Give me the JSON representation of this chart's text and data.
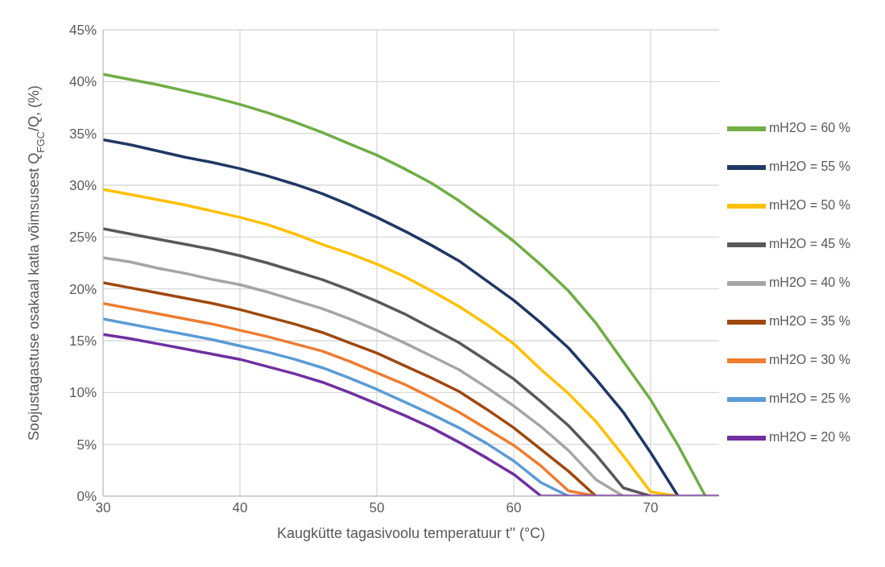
{
  "chart_data": {
    "type": "line",
    "xlabel": "Kaugkütte tagasivoolu temperatuur t'' (°C)",
    "ylabel": "Soojustagastuse osakaal katla võimsusest Q$_{FGC}$/Q, (%)",
    "x": [
      30,
      32,
      34,
      36,
      38,
      40,
      42,
      44,
      46,
      48,
      50,
      52,
      54,
      56,
      58,
      60,
      62,
      64,
      66,
      68,
      70,
      72,
      74,
      75
    ],
    "xlim": [
      30,
      75
    ],
    "xticks": [
      30,
      40,
      50,
      60,
      70
    ],
    "ylim": [
      0,
      45
    ],
    "yticks": [
      {
        "value": 0,
        "label": "0%"
      },
      {
        "value": 5,
        "label": "5%"
      },
      {
        "value": 10,
        "label": "10%"
      },
      {
        "value": 15,
        "label": "15%"
      },
      {
        "value": 20,
        "label": "20%"
      },
      {
        "value": 25,
        "label": "25%"
      },
      {
        "value": 30,
        "label": "30%"
      },
      {
        "value": 35,
        "label": "35%"
      },
      {
        "value": 40,
        "label": "40%"
      },
      {
        "value": 45,
        "label": "45%"
      }
    ],
    "grid": true,
    "legend": "right",
    "line_style": "solid",
    "series": [
      {
        "name": "mH2O = 60 %",
        "color": "#70ad47",
        "values": [
          40.7,
          40.2,
          39.7,
          39.1,
          38.5,
          37.8,
          37.0,
          36.1,
          35.1,
          34.0,
          32.9,
          31.6,
          30.2,
          28.5,
          26.6,
          24.6,
          22.3,
          19.8,
          16.7,
          13.0,
          9.3,
          4.9,
          0,
          null
        ]
      },
      {
        "name": "mH2O = 55 %",
        "color": "#203864",
        "values": [
          34.4,
          33.9,
          33.3,
          32.7,
          32.2,
          31.6,
          30.9,
          30.1,
          29.2,
          28.1,
          26.9,
          25.6,
          24.2,
          22.7,
          20.8,
          18.9,
          16.7,
          14.3,
          11.3,
          8.1,
          4.2,
          0,
          null,
          null
        ]
      },
      {
        "name": "mH2O = 50 %",
        "color": "#ffc000",
        "values": [
          29.6,
          29.1,
          28.6,
          28.1,
          27.5,
          26.9,
          26.2,
          25.3,
          24.3,
          23.4,
          22.4,
          21.2,
          19.8,
          18.3,
          16.6,
          14.7,
          12.2,
          9.9,
          7.2,
          3.9,
          0.4,
          0,
          null,
          null
        ]
      },
      {
        "name": "mH2O = 45 %",
        "color": "#595959",
        "values": [
          25.8,
          25.3,
          24.8,
          24.3,
          23.8,
          23.2,
          22.5,
          21.7,
          20.9,
          19.9,
          18.8,
          17.6,
          16.2,
          14.8,
          13.1,
          11.3,
          9.1,
          6.8,
          4.0,
          0.8,
          0,
          null,
          null,
          null
        ]
      },
      {
        "name": "mH2O = 40 %",
        "color": "#a5a5a5",
        "values": [
          23.0,
          22.6,
          22.0,
          21.5,
          20.9,
          20.4,
          19.7,
          18.9,
          18.1,
          17.1,
          16.0,
          14.8,
          13.5,
          12.2,
          10.5,
          8.7,
          6.7,
          4.4,
          1.6,
          0,
          null,
          null,
          null,
          null
        ]
      },
      {
        "name": "mH2O = 35 %",
        "color": "#9e480e",
        "values": [
          20.6,
          20.1,
          19.6,
          19.1,
          18.6,
          18.0,
          17.3,
          16.6,
          15.8,
          14.8,
          13.8,
          12.6,
          11.4,
          10.1,
          8.4,
          6.6,
          4.5,
          2.4,
          0,
          null,
          null,
          null,
          null,
          null
        ]
      },
      {
        "name": "mH2O = 30 %",
        "color": "#ed7d31",
        "values": [
          18.6,
          18.1,
          17.6,
          17.1,
          16.6,
          16.0,
          15.4,
          14.7,
          14.0,
          13.0,
          11.9,
          10.8,
          9.5,
          8.1,
          6.5,
          4.9,
          2.9,
          0.5,
          0,
          null,
          null,
          null,
          null,
          null
        ]
      },
      {
        "name": "mH2O = 25 %",
        "color": "#5b9bd5",
        "values": [
          17.1,
          16.6,
          16.1,
          15.6,
          15.1,
          14.5,
          13.9,
          13.2,
          12.4,
          11.4,
          10.3,
          9.1,
          7.9,
          6.6,
          5.1,
          3.4,
          1.3,
          0,
          null,
          null,
          null,
          null,
          null,
          null
        ]
      },
      {
        "name": "mH2O = 20 %",
        "color": "#7030a0",
        "values": [
          15.6,
          15.2,
          14.7,
          14.2,
          13.7,
          13.2,
          12.5,
          11.8,
          11.0,
          10.0,
          8.9,
          7.8,
          6.6,
          5.2,
          3.7,
          2.1,
          0,
          0,
          0,
          0,
          0,
          0,
          0,
          0
        ]
      }
    ]
  }
}
